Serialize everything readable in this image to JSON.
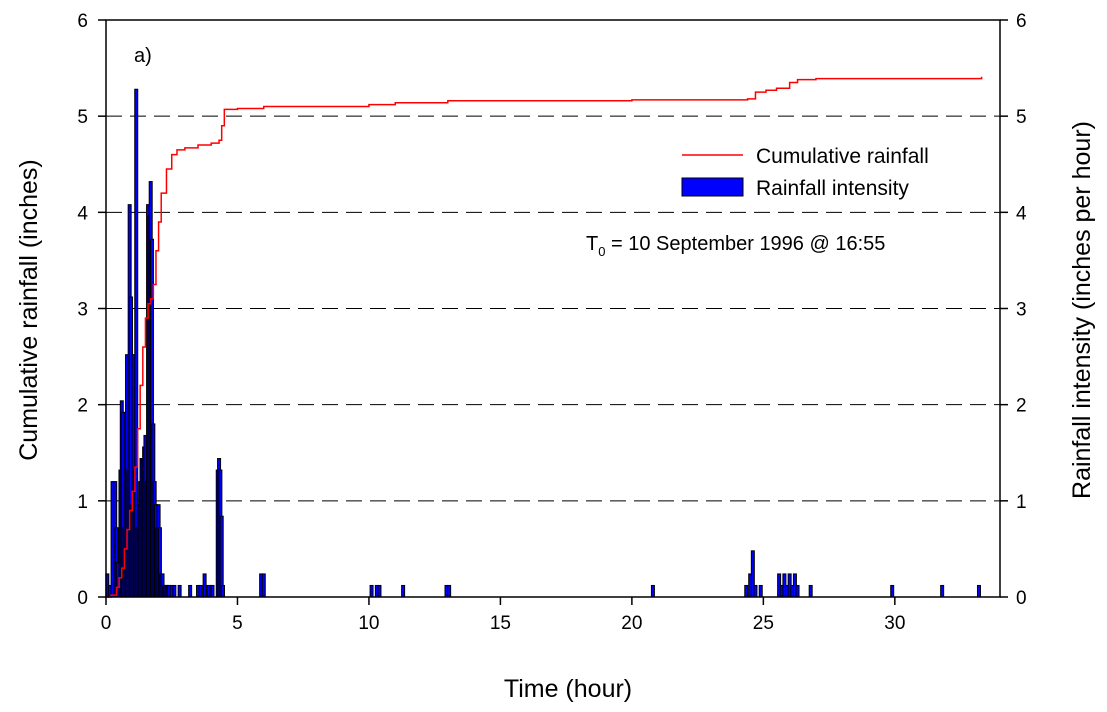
{
  "chart_data": {
    "type": "bar+line",
    "panel_label": "a)",
    "xlabel": "Time (hour)",
    "ylabel_left": "Cumulative rainfall (inches)",
    "ylabel_right": "Rainfall intensity (inches per hour)",
    "xlim": [
      0,
      34
    ],
    "ylim_left": [
      0,
      6
    ],
    "ylim_right": [
      0,
      6
    ],
    "x_ticks": [
      0,
      5,
      10,
      15,
      20,
      25,
      30
    ],
    "y_ticks": [
      0,
      1,
      2,
      3,
      4,
      5,
      6
    ],
    "x_tick_labels": [
      "0",
      "5",
      "10",
      "15",
      "20",
      "25",
      "30"
    ],
    "y_tick_labels": [
      "0",
      "1",
      "2",
      "3",
      "4",
      "5",
      "6"
    ],
    "grid": "horizontal dashed at 1,2,3,4,5",
    "legend_position": "upper-right",
    "legend": [
      {
        "label": "Cumulative rainfall",
        "kind": "line",
        "color": "#ff0000"
      },
      {
        "label": "Rainfall intensity",
        "kind": "bar",
        "color": "#0000ff"
      }
    ],
    "annotation": {
      "base": "T",
      "subscript": "0",
      "rest": " = 10 September 1996 @ 16:55"
    },
    "series": [
      {
        "name": "Cumulative rainfall",
        "kind": "line",
        "axis": "left",
        "color": "#ff0000",
        "points": [
          [
            0,
            0
          ],
          [
            0.2,
            0.02
          ],
          [
            0.4,
            0.1
          ],
          [
            0.5,
            0.2
          ],
          [
            0.6,
            0.3
          ],
          [
            0.7,
            0.5
          ],
          [
            0.8,
            0.7
          ],
          [
            0.9,
            0.9
          ],
          [
            1.0,
            1.1
          ],
          [
            1.1,
            1.35
          ],
          [
            1.2,
            1.75
          ],
          [
            1.3,
            2.2
          ],
          [
            1.4,
            2.6
          ],
          [
            1.5,
            2.9
          ],
          [
            1.6,
            3.05
          ],
          [
            1.7,
            3.1
          ],
          [
            1.8,
            3.25
          ],
          [
            1.9,
            3.6
          ],
          [
            2.0,
            3.9
          ],
          [
            2.1,
            4.2
          ],
          [
            2.3,
            4.45
          ],
          [
            2.5,
            4.6
          ],
          [
            2.7,
            4.65
          ],
          [
            3.0,
            4.67
          ],
          [
            3.5,
            4.7
          ],
          [
            4.0,
            4.72
          ],
          [
            4.3,
            4.75
          ],
          [
            4.4,
            4.9
          ],
          [
            4.5,
            5.07
          ],
          [
            5.0,
            5.08
          ],
          [
            6.0,
            5.1
          ],
          [
            10,
            5.12
          ],
          [
            11,
            5.14
          ],
          [
            13,
            5.16
          ],
          [
            20,
            5.17
          ],
          [
            24.4,
            5.18
          ],
          [
            24.7,
            5.25
          ],
          [
            25.1,
            5.27
          ],
          [
            25.5,
            5.29
          ],
          [
            26.0,
            5.35
          ],
          [
            26.3,
            5.38
          ],
          [
            27,
            5.39
          ],
          [
            33.3,
            5.41
          ]
        ]
      },
      {
        "name": "Rainfall intensity",
        "kind": "bar",
        "axis": "right",
        "color": "#0000ff",
        "x": [
          0.05,
          0.15,
          0.25,
          0.35,
          0.4,
          0.45,
          0.55,
          0.6,
          0.65,
          0.7,
          0.75,
          0.8,
          0.85,
          0.9,
          0.95,
          1.0,
          1.05,
          1.1,
          1.15,
          1.2,
          1.25,
          1.3,
          1.35,
          1.4,
          1.45,
          1.5,
          1.55,
          1.6,
          1.65,
          1.7,
          1.75,
          1.8,
          1.85,
          1.9,
          1.95,
          2.0,
          2.05,
          2.1,
          2.15,
          2.2,
          2.25,
          2.3,
          2.35,
          2.4,
          2.5,
          2.6,
          2.8,
          3.2,
          3.5,
          3.6,
          3.75,
          3.9,
          4.0,
          4.05,
          4.25,
          4.3,
          4.35,
          4.4,
          4.45,
          5.9,
          6.0,
          10.1,
          10.3,
          10.4,
          11.3,
          12.95,
          13.05,
          20.8,
          24.35,
          24.5,
          24.6,
          24.7,
          24.9,
          25.6,
          25.7,
          25.8,
          25.9,
          26.0,
          26.1,
          26.2,
          26.3,
          26.8,
          29.9,
          31.8,
          33.2
        ],
        "values": [
          0.24,
          0.12,
          1.2,
          1.2,
          0.72,
          0.36,
          1.32,
          2.04,
          1.92,
          0.72,
          1.92,
          2.52,
          1.32,
          4.08,
          3.12,
          0.96,
          2.52,
          1.32,
          5.28,
          0.72,
          0.96,
          1.2,
          1.44,
          1.44,
          1.56,
          1.68,
          1.2,
          4.08,
          3.96,
          4.32,
          3.72,
          1.8,
          1.2,
          0.96,
          0.72,
          0.96,
          0.72,
          0.24,
          0.24,
          0.12,
          0.12,
          0.12,
          0.12,
          0.12,
          0.12,
          0.12,
          0.12,
          0.12,
          0.12,
          0.12,
          0.24,
          0.12,
          0.12,
          0.12,
          1.32,
          1.44,
          1.32,
          0.84,
          0.12,
          0.24,
          0.24,
          0.12,
          0.12,
          0.12,
          0.12,
          0.12,
          0.12,
          0.12,
          0.12,
          0.24,
          0.48,
          0.12,
          0.12,
          0.24,
          0.12,
          0.24,
          0.12,
          0.24,
          0.12,
          0.24,
          0.12,
          0.12,
          0.12,
          0.12,
          0.12
        ]
      }
    ]
  }
}
